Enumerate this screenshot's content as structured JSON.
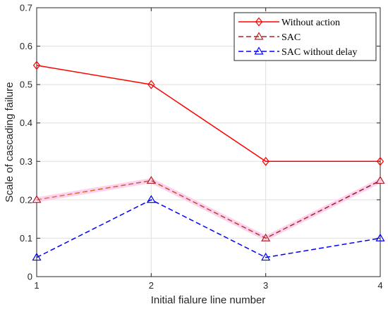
{
  "chart_data": {
    "type": "line",
    "title": "",
    "xlabel": "Initial fialure line number",
    "ylabel": "Scale of cascading failure",
    "x": [
      1,
      2,
      3,
      4
    ],
    "xlim": [
      1,
      4
    ],
    "ylim": [
      0,
      0.7
    ],
    "xticks": [
      "1",
      "2",
      "3",
      "4"
    ],
    "yticks": [
      "0",
      "0.1",
      "0.2",
      "0.3",
      "0.4",
      "0.5",
      "0.6",
      "0.7"
    ],
    "grid": true,
    "legend_position": "top-right",
    "series": [
      {
        "name": "Without action",
        "values": [
          0.55,
          0.5,
          0.3,
          0.3
        ],
        "color": "#ff0000",
        "line_style": "solid",
        "marker": "diamond"
      },
      {
        "name": "SAC",
        "values": [
          0.2,
          0.25,
          0.1,
          0.25
        ],
        "color": "#b22222",
        "line_style": "dashed",
        "marker": "triangle",
        "line_gradient": [
          "#d98030",
          "#8b1a1a"
        ],
        "highlight_color": "#ffd0f0"
      },
      {
        "name": "SAC without delay",
        "values": [
          0.05,
          0.2,
          0.05,
          0.1
        ],
        "color": "#0000ff",
        "line_style": "dashed",
        "marker": "triangle"
      }
    ]
  }
}
